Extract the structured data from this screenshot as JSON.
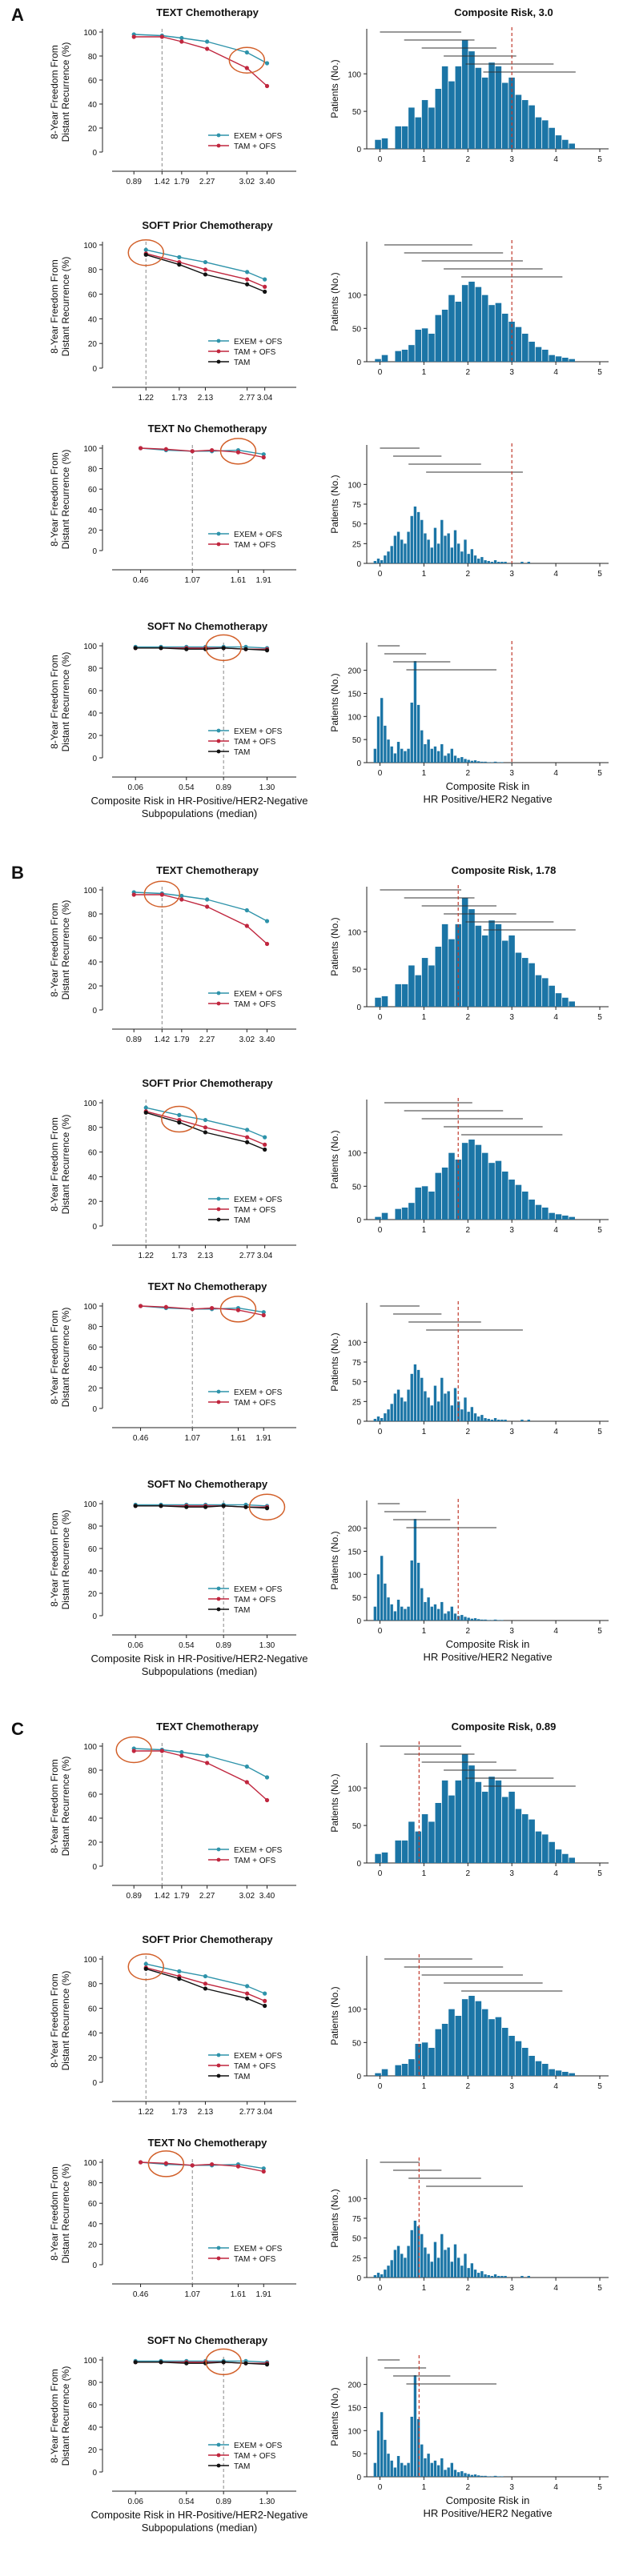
{
  "figure": {
    "shared": {
      "line_ylabel_1": "8-Year Freedom From",
      "line_ylabel_2": "Distant Recurrence (%)",
      "hist_ylabel": "Patients (No.)",
      "bottom_xlabel_1": "Composite Risk in HR-Positive/HER2-Negative",
      "bottom_xlabel_2": "Subpopulations (median)",
      "hist_xlabel_1": "Composite Risk in",
      "hist_xlabel_2": "HR Positive/HER2 Negative"
    },
    "colors": {
      "exem": "#2e93aa",
      "tam_ofs": "#c0263e",
      "tam": "#111111",
      "bar": "#1b75a6",
      "threshold": "#c0392b",
      "median": "#888888",
      "highlight": "#d2602a"
    },
    "sections": [
      {
        "letter": "A",
        "hist_title": "Composite Risk, 3.0",
        "threshold": 3.0
      },
      {
        "letter": "B",
        "hist_title": "Composite Risk, 1.78",
        "threshold": 1.78
      },
      {
        "letter": "C",
        "hist_title": "Composite Risk, 0.89",
        "threshold": 0.89
      }
    ]
  },
  "chart_data": [
    {
      "type": "line",
      "title": "TEXT Chemotherapy",
      "xlabel": "Composite Risk in HR-Positive/HER2-Negative Subpopulations (median)",
      "ylabel": "8-Year Freedom From Distant Recurrence (%)",
      "ylim": [
        0,
        100
      ],
      "median": 1.42,
      "xticks": [
        "0.89",
        "1.42",
        "1.79",
        "2.27",
        "3.02",
        "3.40"
      ],
      "x": [
        0.89,
        1.42,
        1.79,
        2.27,
        3.02,
        3.4
      ],
      "series": [
        {
          "name": "EXEM + OFS",
          "values": [
            98,
            97,
            95,
            92,
            83,
            74
          ]
        },
        {
          "name": "TAM + OFS",
          "values": [
            96,
            96,
            92,
            86,
            70,
            55
          ]
        }
      ]
    },
    {
      "type": "line",
      "title": "SOFT Prior Chemotherapy",
      "xlabel": "Composite Risk in HR-Positive/HER2-Negative Subpopulations (median)",
      "ylabel": "8-Year Freedom From Distant Recurrence (%)",
      "ylim": [
        0,
        100
      ],
      "median": 1.22,
      "xticks": [
        "1.22",
        "1.73",
        "2.13",
        "2.77",
        "3.04"
      ],
      "x": [
        1.22,
        1.73,
        2.13,
        2.77,
        3.04
      ],
      "series": [
        {
          "name": "EXEM + OFS",
          "values": [
            96,
            90,
            86,
            78,
            72
          ]
        },
        {
          "name": "TAM + OFS",
          "values": [
            93,
            86,
            80,
            72,
            66
          ]
        },
        {
          "name": "TAM",
          "values": [
            92,
            84,
            76,
            68,
            62
          ]
        }
      ]
    },
    {
      "type": "line",
      "title": "TEXT No Chemotherapy",
      "xlabel": "Composite Risk in HR-Positive/HER2-Negative Subpopulations (median)",
      "ylabel": "8-Year Freedom From Distant Recurrence (%)",
      "ylim": [
        0,
        100
      ],
      "median": 1.07,
      "xticks": [
        "0.46",
        "1.07",
        "1.61",
        "1.91"
      ],
      "x": [
        0.46,
        0.76,
        1.07,
        1.3,
        1.61,
        1.91
      ],
      "series": [
        {
          "name": "EXEM + OFS",
          "values": [
            100,
            98,
            97,
            97,
            98,
            94
          ]
        },
        {
          "name": "TAM + OFS",
          "values": [
            100,
            99,
            97,
            98,
            96,
            91
          ]
        }
      ]
    },
    {
      "type": "line",
      "title": "SOFT No Chemotherapy",
      "xlabel": "Composite Risk in HR-Positive/HER2-Negative Subpopulations (median)",
      "ylabel": "8-Year Freedom From Distant Recurrence (%)",
      "ylim": [
        0,
        100
      ],
      "median": 0.89,
      "xticks": [
        "0.06",
        "0.54",
        "0.89",
        "1.30"
      ],
      "x": [
        0.06,
        0.3,
        0.54,
        0.72,
        0.89,
        1.1,
        1.3
      ],
      "series": [
        {
          "name": "EXEM + OFS",
          "values": [
            99,
            99,
            99,
            99,
            99,
            99,
            98
          ]
        },
        {
          "name": "TAM + OFS",
          "values": [
            98,
            98,
            98,
            98,
            98,
            97,
            97
          ]
        },
        {
          "name": "TAM",
          "values": [
            98,
            98,
            97,
            97,
            98,
            97,
            96
          ]
        }
      ]
    },
    {
      "type": "bar",
      "title": "TEXT Chemotherapy",
      "xlabel": "Composite Risk in HR Positive/HER2 Negative",
      "ylabel": "Patients (No.)",
      "xlim": [
        -0.3,
        5.2
      ],
      "ylim": [
        0,
        160
      ],
      "yticks": [
        0,
        50,
        100
      ],
      "xticks": [
        0,
        1,
        2,
        3,
        4,
        5
      ],
      "bin_width": 0.152,
      "bin_starts": [
        -0.12,
        0.034,
        0.186,
        0.338,
        0.49,
        0.642,
        0.794,
        0.946,
        1.098,
        1.25,
        1.402,
        1.554,
        1.706,
        1.858,
        2.01,
        2.162,
        2.314,
        2.466,
        2.618,
        2.77,
        2.922,
        3.074,
        3.226,
        3.378,
        3.53,
        3.682,
        3.834,
        3.986,
        4.138,
        4.29
      ],
      "values": [
        12,
        14,
        0,
        30,
        30,
        55,
        42,
        65,
        55,
        80,
        110,
        90,
        110,
        145,
        130,
        108,
        95,
        115,
        110,
        88,
        95,
        72,
        65,
        58,
        42,
        38,
        28,
        18,
        12,
        7
      ],
      "medians": [
        0.89,
        1.42,
        1.79,
        2.27,
        3.02,
        3.4
      ],
      "range_bar_starts": [
        0.0,
        0.55,
        0.95,
        1.45,
        1.95,
        2.35
      ],
      "range_bar_ends": [
        1.85,
        2.15,
        2.65,
        3.1,
        3.95,
        4.45
      ]
    },
    {
      "type": "bar",
      "title": "SOFT Prior Chemotherapy",
      "xlabel": "Composite Risk in HR Positive/HER2 Negative",
      "ylabel": "Patients (No.)",
      "xlim": [
        -0.3,
        5.2
      ],
      "ylim": [
        0,
        180
      ],
      "yticks": [
        0,
        50,
        100
      ],
      "xticks": [
        0,
        1,
        2,
        3,
        4,
        5
      ],
      "bin_width": 0.152,
      "bin_starts": [
        -0.12,
        0.034,
        0.186,
        0.338,
        0.49,
        0.642,
        0.794,
        0.946,
        1.098,
        1.25,
        1.402,
        1.554,
        1.706,
        1.858,
        2.01,
        2.162,
        2.314,
        2.466,
        2.618,
        2.77,
        2.922,
        3.074,
        3.226,
        3.378,
        3.53,
        3.682,
        3.834,
        3.986,
        4.138,
        4.29
      ],
      "values": [
        4,
        10,
        0,
        16,
        18,
        25,
        48,
        50,
        42,
        70,
        78,
        100,
        90,
        115,
        120,
        112,
        100,
        85,
        88,
        72,
        60,
        52,
        42,
        30,
        22,
        18,
        10,
        8,
        6,
        4
      ],
      "medians": [
        1.22,
        1.73,
        2.13,
        2.77,
        3.04
      ],
      "range_bar_starts": [
        0.1,
        0.55,
        0.95,
        1.45,
        1.85
      ],
      "range_bar_ends": [
        2.1,
        2.8,
        3.25,
        3.7,
        4.15
      ]
    },
    {
      "type": "bar",
      "title": "TEXT No Chemotherapy",
      "xlabel": "Composite Risk in HR Positive/HER2 Negative",
      "ylabel": "Patients (No.)",
      "xlim": [
        -0.3,
        5.2
      ],
      "ylim": [
        0,
        150
      ],
      "yticks": [
        0,
        25,
        50,
        75,
        100
      ],
      "xticks": [
        0,
        1,
        2,
        3,
        4,
        5
      ],
      "bin_width": 0.076,
      "bin_starts": [
        -0.15,
        -0.074,
        0.002,
        0.078,
        0.154,
        0.23,
        0.306,
        0.382,
        0.458,
        0.534,
        0.61,
        0.686,
        0.762,
        0.838,
        0.914,
        0.99,
        1.066,
        1.142,
        1.218,
        1.294,
        1.37,
        1.446,
        1.522,
        1.598,
        1.674,
        1.75,
        1.826,
        1.902,
        1.978,
        2.054,
        2.13,
        2.206,
        2.282,
        2.358,
        2.434,
        2.51,
        2.586,
        2.662,
        2.738,
        2.814,
        2.89,
        2.966,
        3.042,
        3.118,
        3.194,
        3.27,
        3.346
      ],
      "values": [
        3,
        6,
        4,
        10,
        15,
        22,
        35,
        40,
        30,
        25,
        40,
        60,
        72,
        65,
        55,
        38,
        30,
        20,
        45,
        25,
        55,
        35,
        38,
        20,
        42,
        25,
        15,
        30,
        12,
        18,
        10,
        6,
        8,
        4,
        3,
        2,
        4,
        2,
        2,
        2,
        0,
        0,
        0,
        0,
        2,
        0,
        2
      ],
      "medians": [
        0.46,
        1.07,
        1.61,
        1.91
      ],
      "range_bar_starts": [
        0.0,
        0.3,
        0.65,
        1.05
      ],
      "range_bar_ends": [
        0.9,
        1.4,
        2.3,
        3.25
      ]
    },
    {
      "type": "bar",
      "title": "SOFT No Chemotherapy",
      "xlabel": "Composite Risk in HR Positive/HER2 Negative",
      "ylabel": "Patients (No.)",
      "xlim": [
        -0.3,
        5.2
      ],
      "ylim": [
        0,
        260
      ],
      "yticks": [
        0,
        50,
        100,
        150,
        200
      ],
      "xticks": [
        0,
        1,
        2,
        3,
        4,
        5
      ],
      "bin_width": 0.076,
      "bin_starts": [
        -0.15,
        -0.074,
        0.002,
        0.078,
        0.154,
        0.23,
        0.306,
        0.382,
        0.458,
        0.534,
        0.61,
        0.686,
        0.762,
        0.838,
        0.914,
        0.99,
        1.066,
        1.142,
        1.218,
        1.294,
        1.37,
        1.446,
        1.522,
        1.598,
        1.674,
        1.75,
        1.826,
        1.902,
        1.978,
        2.054,
        2.13,
        2.206,
        2.282,
        2.358,
        2.434,
        2.51,
        2.586,
        2.662,
        2.738
      ],
      "values": [
        30,
        100,
        140,
        80,
        50,
        35,
        20,
        45,
        30,
        25,
        30,
        130,
        220,
        125,
        70,
        40,
        50,
        30,
        35,
        25,
        40,
        15,
        20,
        30,
        15,
        10,
        12,
        8,
        6,
        4,
        5,
        3,
        2,
        2,
        1,
        1,
        2,
        1,
        1
      ],
      "medians": [
        0.06,
        0.54,
        0.89,
        1.3
      ],
      "range_bar_starts": [
        -0.05,
        0.1,
        0.3,
        0.6
      ],
      "range_bar_ends": [
        0.45,
        1.05,
        1.6,
        2.65
      ]
    }
  ]
}
